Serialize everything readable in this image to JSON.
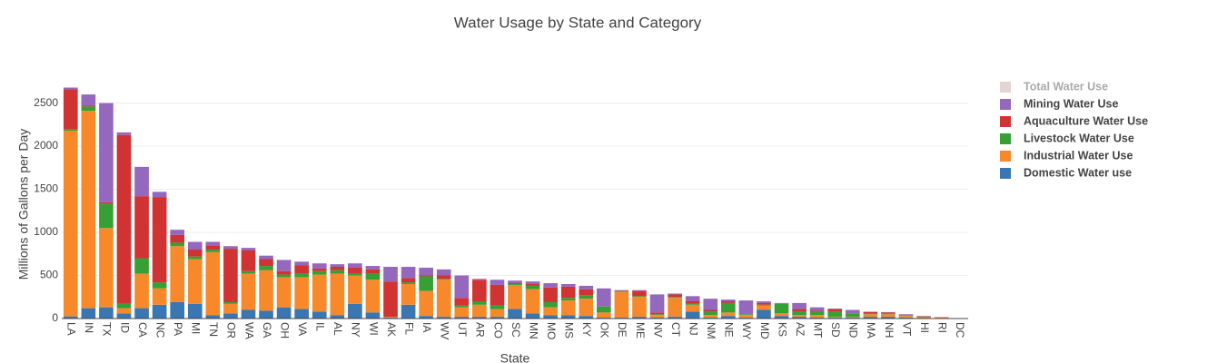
{
  "chart_data": {
    "type": "stacked_bar",
    "title": "Water Usage by State and Category",
    "x_label": "State",
    "y_label": "Millions of Gallons per Day",
    "categories": [
      "LA",
      "IN",
      "TX",
      "ID",
      "CA",
      "NC",
      "PA",
      "MI",
      "TN",
      "OR",
      "WA",
      "GA",
      "OH",
      "VA",
      "IL",
      "AL",
      "NY",
      "WI",
      "AK",
      "FL",
      "IA",
      "WV",
      "UT",
      "AR",
      "CO",
      "SC",
      "MN",
      "MO",
      "MS",
      "KY",
      "OK",
      "DE",
      "ME",
      "NV",
      "CT",
      "NJ",
      "NM",
      "NE",
      "WY",
      "MD",
      "KS",
      "AZ",
      "MT",
      "SD",
      "ND",
      "MA",
      "NH",
      "VT",
      "HI",
      "RI",
      "DC"
    ],
    "series": [
      {
        "name": "Domestic Water use",
        "color": "#3a76b1",
        "values": [
          25,
          120,
          130,
          60,
          120,
          160,
          190,
          170,
          40,
          60,
          100,
          90,
          130,
          110,
          80,
          40,
          170,
          70,
          10,
          160,
          30,
          20,
          20,
          20,
          20,
          110,
          60,
          40,
          40,
          30,
          10,
          10,
          20,
          10,
          20,
          80,
          10,
          30,
          10,
          100,
          30,
          20,
          10,
          10,
          10,
          20,
          20,
          10,
          5,
          5,
          2
        ]
      },
      {
        "name": "Industrial Water Use",
        "color": "#f7892b",
        "values": [
          2155,
          2290,
          920,
          60,
          400,
          190,
          650,
          520,
          730,
          110,
          420,
          470,
          350,
          370,
          430,
          480,
          330,
          380,
          10,
          240,
          290,
          430,
          110,
          140,
          90,
          280,
          280,
          90,
          170,
          200,
          60,
          300,
          230,
          30,
          220,
          80,
          30,
          40,
          30,
          50,
          30,
          20,
          30,
          10,
          10,
          30,
          30,
          20,
          10,
          5,
          2
        ]
      },
      {
        "name": "Livestock Water Use",
        "color": "#36a035",
        "values": [
          20,
          50,
          280,
          50,
          180,
          70,
          40,
          30,
          30,
          20,
          30,
          50,
          30,
          40,
          40,
          40,
          20,
          70,
          0,
          20,
          170,
          10,
          20,
          40,
          40,
          10,
          40,
          60,
          30,
          40,
          70,
          5,
          10,
          10,
          10,
          10,
          40,
          110,
          10,
          10,
          110,
          40,
          40,
          60,
          40,
          5,
          5,
          5,
          5,
          0,
          0
        ]
      },
      {
        "name": "Aquaculture Water Use",
        "color": "#d13232",
        "values": [
          460,
          10,
          20,
          1960,
          720,
          990,
          90,
          80,
          50,
          620,
          240,
          80,
          40,
          100,
          30,
          40,
          70,
          50,
          410,
          50,
          10,
          40,
          90,
          250,
          240,
          10,
          20,
          170,
          130,
          70,
          0,
          5,
          60,
          20,
          30,
          30,
          20,
          20,
          0,
          20,
          5,
          30,
          10,
          30,
          0,
          20,
          15,
          5,
          5,
          5,
          0
        ]
      },
      {
        "name": "Mining Water Use",
        "color": "#9468bd",
        "values": [
          20,
          130,
          1150,
          30,
          340,
          60,
          60,
          90,
          40,
          30,
          30,
          40,
          130,
          40,
          60,
          30,
          50,
          40,
          170,
          130,
          90,
          70,
          260,
          10,
          60,
          30,
          30,
          50,
          30,
          40,
          210,
          10,
          10,
          210,
          10,
          60,
          130,
          20,
          160,
          20,
          5,
          70,
          40,
          5,
          40,
          5,
          5,
          10,
          5,
          0,
          0
        ]
      }
    ],
    "hidden_legend": [
      {
        "name": "Total Water Use",
        "color": "#c8aca8"
      }
    ],
    "ylim": [
      0,
      2780
    ],
    "yticks": [
      0,
      500,
      1000,
      1500,
      2000,
      2500
    ],
    "grid": true,
    "legend": "right"
  }
}
